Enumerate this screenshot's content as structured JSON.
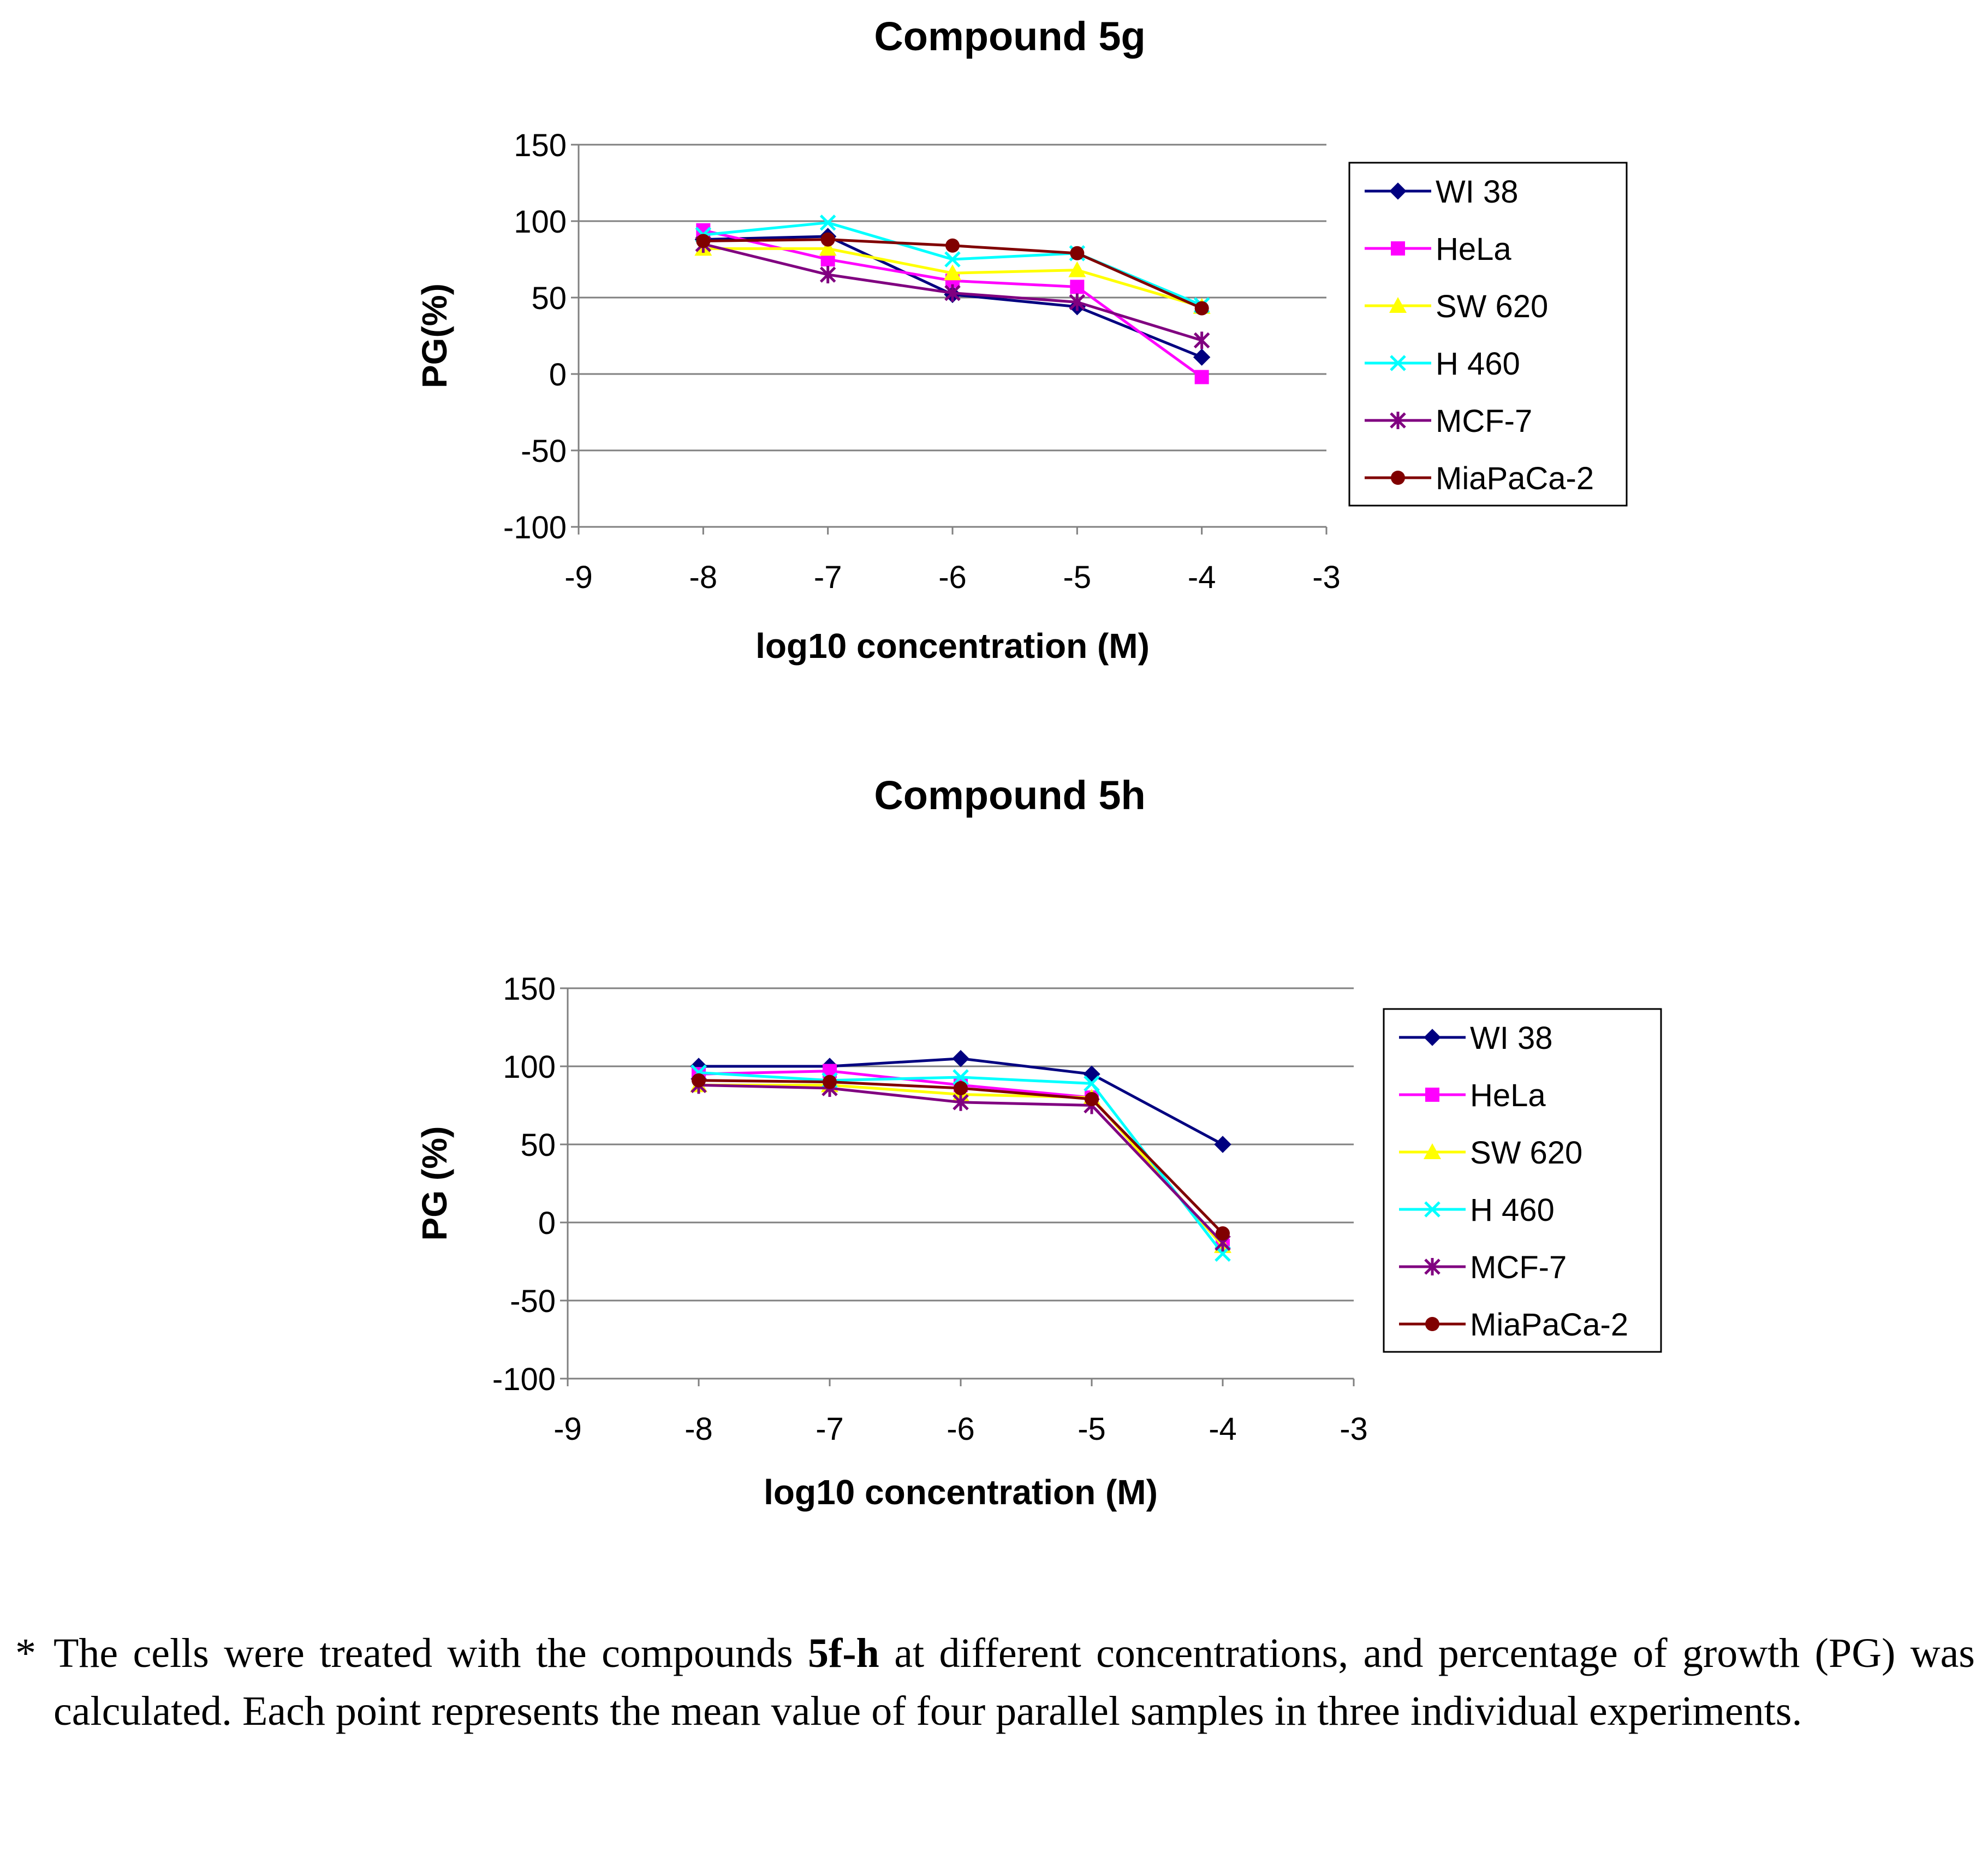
{
  "charts": [
    {
      "title": "Compound 5g",
      "xlabel": "log10 concentration (M)",
      "ylabel": "PG(%)",
      "xlim": [
        -9,
        -3
      ],
      "ylim": [
        -100,
        150
      ],
      "xticks": [
        -9,
        -8,
        -7,
        -6,
        -5,
        -4,
        -3
      ],
      "yticks": [
        150,
        100,
        50,
        0,
        -50,
        -100
      ],
      "grid": "horizontal",
      "legend": "right"
    },
    {
      "title": "Compound 5h",
      "xlabel": "log10 concentration (M)",
      "ylabel": "PG (%)",
      "xlim": [
        -9,
        -3
      ],
      "ylim": [
        -100,
        150
      ],
      "xticks": [
        -9,
        -8,
        -7,
        -6,
        -5,
        -4,
        -3
      ],
      "yticks": [
        150,
        100,
        50,
        0,
        -50,
        -100
      ],
      "grid": "horizontal",
      "legend": "right"
    }
  ],
  "chart_data": [
    {
      "type": "line",
      "title": "Compound 5g",
      "xlabel": "log10 concentration (M)",
      "ylabel": "PG(%)",
      "xlim": [
        -9,
        -3
      ],
      "ylim": [
        -100,
        150
      ],
      "x": [
        -8,
        -7,
        -6,
        -5,
        -4
      ],
      "series": [
        {
          "name": "WI 38",
          "color": "#000080",
          "marker": "diamond",
          "values": [
            88,
            90,
            52,
            44,
            11
          ]
        },
        {
          "name": "HeLa",
          "color": "#FF00FF",
          "marker": "square",
          "values": [
            94,
            75,
            61,
            57,
            -2
          ]
        },
        {
          "name": "SW 620",
          "color": "#FFFF00",
          "marker": "triangle",
          "values": [
            82,
            82,
            66,
            68,
            44
          ]
        },
        {
          "name": "H 460",
          "color": "#00FFFF",
          "marker": "x",
          "values": [
            91,
            99,
            75,
            79,
            45
          ]
        },
        {
          "name": "MCF-7",
          "color": "#800080",
          "marker": "star",
          "values": [
            85,
            65,
            53,
            47,
            22
          ]
        },
        {
          "name": "MiaPaCa-2",
          "color": "#800000",
          "marker": "circle",
          "values": [
            87,
            88,
            84,
            79,
            43
          ]
        }
      ]
    },
    {
      "type": "line",
      "title": "Compound 5h",
      "xlabel": "log10 concentration (M)",
      "ylabel": "PG (%)",
      "xlim": [
        -9,
        -3
      ],
      "ylim": [
        -100,
        150
      ],
      "x": [
        -8,
        -7,
        -6,
        -5,
        -4
      ],
      "series": [
        {
          "name": "WI 38",
          "color": "#000080",
          "marker": "diamond",
          "values": [
            100,
            100,
            105,
            95,
            50
          ]
        },
        {
          "name": "HeLa",
          "color": "#FF00FF",
          "marker": "square",
          "values": [
            95,
            97,
            88,
            80,
            -15
          ]
        },
        {
          "name": "SW 620",
          "color": "#FFFF00",
          "marker": "triangle",
          "values": [
            88,
            88,
            82,
            80,
            -15
          ]
        },
        {
          "name": "H 460",
          "color": "#00FFFF",
          "marker": "x",
          "values": [
            96,
            91,
            93,
            89,
            -20
          ]
        },
        {
          "name": "MCF-7",
          "color": "#800080",
          "marker": "star",
          "values": [
            88,
            86,
            77,
            75,
            -13
          ]
        },
        {
          "name": "MiaPaCa-2",
          "color": "#800000",
          "marker": "circle",
          "values": [
            91,
            90,
            86,
            79,
            -7
          ]
        }
      ]
    }
  ],
  "caption": {
    "star": "*",
    "before": "The cells were treated with the compounds ",
    "bold": "5f-h",
    "after": " at different concentrations, and percentage of growth (PG) was calculated. Each point represents the mean value of four parallel samples in three individual experiments."
  }
}
